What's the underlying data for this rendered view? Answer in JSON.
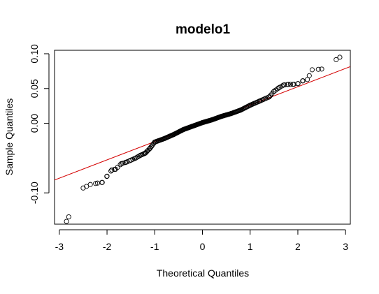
{
  "chart_data": {
    "type": "scatter",
    "subtype": "normal-qq-plot",
    "title": "modelo1",
    "xlabel": "Theoretical Quantiles",
    "ylabel": "Sample Quantiles",
    "xlim": [
      -3.1,
      3.1
    ],
    "ylim": [
      -0.145,
      0.105
    ],
    "x_ticks": [
      -3,
      -2,
      -1,
      0,
      1,
      2,
      3
    ],
    "x_tick_labels": [
      "-3",
      "-2",
      "-1",
      "0",
      "1",
      "2",
      "3"
    ],
    "y_ticks": [
      -0.1,
      0.0,
      0.05,
      0.1
    ],
    "y_tick_labels": [
      "-0.10",
      "0.00",
      "0.05",
      "0.10"
    ],
    "grid": false,
    "point_color": "#000000",
    "line_color": "#d40000",
    "reference_line": {
      "intercept": 0.0,
      "slope": 0.0263
    },
    "points_outline": [
      [
        -2.85,
        -0.141
      ],
      [
        -2.5,
        -0.093
      ],
      [
        -2.35,
        -0.088
      ],
      [
        -2.2,
        -0.086
      ],
      [
        -2.1,
        -0.085
      ],
      [
        -2.0,
        -0.076
      ],
      [
        -1.9,
        -0.067
      ],
      [
        -1.82,
        -0.066
      ],
      [
        -1.7,
        -0.058
      ],
      [
        -1.6,
        -0.056
      ],
      [
        -1.5,
        -0.053
      ],
      [
        -1.4,
        -0.05
      ],
      [
        -1.3,
        -0.046
      ],
      [
        -1.2,
        -0.043
      ],
      [
        -1.1,
        -0.036
      ],
      [
        -1.0,
        -0.027
      ],
      [
        -0.8,
        -0.022
      ],
      [
        -0.6,
        -0.016
      ],
      [
        -0.4,
        -0.009
      ],
      [
        -0.2,
        -0.004
      ],
      [
        0.0,
        0.001
      ],
      [
        0.2,
        0.005
      ],
      [
        0.4,
        0.01
      ],
      [
        0.6,
        0.014
      ],
      [
        0.8,
        0.019
      ],
      [
        1.0,
        0.026
      ],
      [
        1.2,
        0.032
      ],
      [
        1.4,
        0.038
      ],
      [
        1.5,
        0.046
      ],
      [
        1.6,
        0.051
      ],
      [
        1.7,
        0.055
      ],
      [
        1.8,
        0.056
      ],
      [
        1.9,
        0.056
      ],
      [
        2.0,
        0.057
      ],
      [
        2.1,
        0.061
      ],
      [
        2.2,
        0.063
      ],
      [
        2.3,
        0.077
      ],
      [
        2.5,
        0.078
      ],
      [
        2.88,
        0.095
      ]
    ],
    "n_points": 200
  }
}
